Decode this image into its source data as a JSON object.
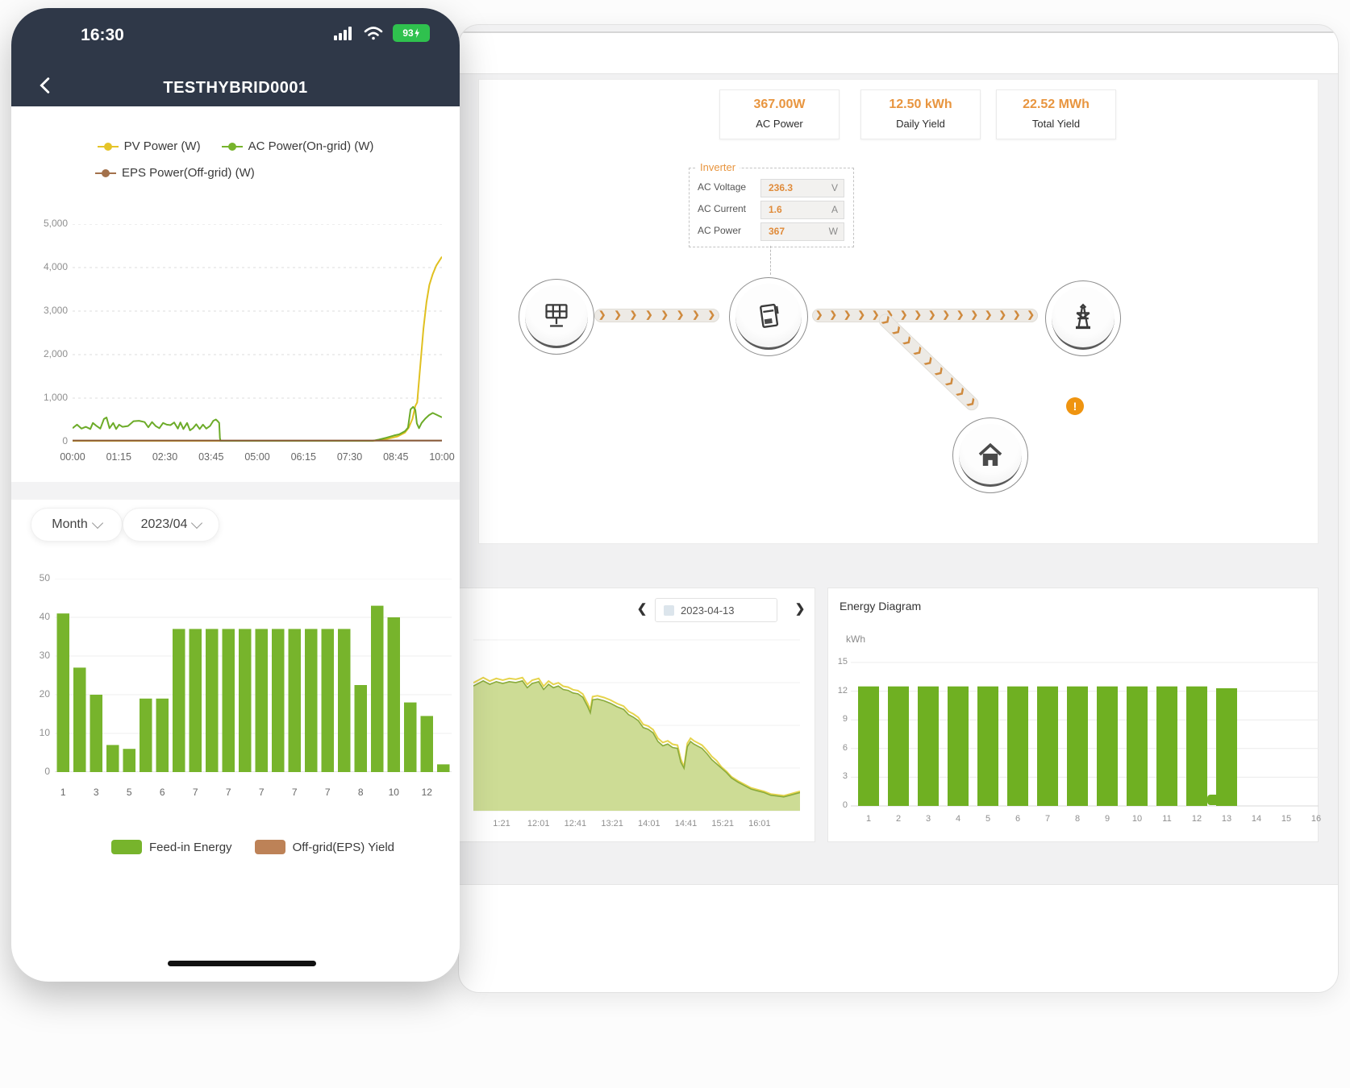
{
  "phone": {
    "status_bar": {
      "time": "16:30",
      "battery_level": "93"
    },
    "nav": {
      "title": "TESTHYBRID0001"
    },
    "power_chart": {
      "type": "line",
      "legend": [
        {
          "label": "PV Power (W)",
          "color": "#e5c428"
        },
        {
          "label": "AC Power(On-grid) (W)",
          "color": "#77b42c"
        },
        {
          "label": "EPS Power(Off-grid) (W)",
          "color": "#a3714b"
        }
      ],
      "y_ticks": [
        "5,000",
        "4,000",
        "3,000",
        "2,000",
        "1,000",
        "0"
      ],
      "ylim": [
        0,
        5000
      ],
      "x_ticks": [
        "00:00",
        "01:15",
        "02:30",
        "03:45",
        "05:00",
        "06:15",
        "07:30",
        "08:45",
        "10:00"
      ],
      "series": [
        {
          "name": "PV Power (W)",
          "color": "#e0c020",
          "points": [
            [
              0,
              0
            ],
            [
              0.79,
              0
            ],
            [
              0.82,
              25
            ],
            [
              0.85,
              60
            ],
            [
              0.88,
              120
            ],
            [
              0.9,
              210
            ],
            [
              0.91,
              320
            ],
            [
              0.92,
              520
            ],
            [
              0.928,
              820
            ],
            [
              0.933,
              900
            ],
            [
              0.94,
              1600
            ],
            [
              0.95,
              2600
            ],
            [
              0.958,
              3200
            ],
            [
              0.966,
              3600
            ],
            [
              0.975,
              3850
            ],
            [
              0.985,
              4050
            ],
            [
              1,
              4250
            ]
          ]
        },
        {
          "name": "AC Power(On-grid) (W)",
          "color": "#6cab28",
          "points": [
            [
              0,
              310
            ],
            [
              0.012,
              390
            ],
            [
              0.024,
              300
            ],
            [
              0.036,
              340
            ],
            [
              0.048,
              290
            ],
            [
              0.055,
              430
            ],
            [
              0.065,
              360
            ],
            [
              0.075,
              300
            ],
            [
              0.085,
              520
            ],
            [
              0.092,
              555
            ],
            [
              0.1,
              310
            ],
            [
              0.11,
              430
            ],
            [
              0.118,
              290
            ],
            [
              0.126,
              390
            ],
            [
              0.135,
              340
            ],
            [
              0.15,
              360
            ],
            [
              0.165,
              470
            ],
            [
              0.18,
              480
            ],
            [
              0.195,
              450
            ],
            [
              0.205,
              330
            ],
            [
              0.215,
              450
            ],
            [
              0.225,
              360
            ],
            [
              0.235,
              310
            ],
            [
              0.245,
              430
            ],
            [
              0.255,
              390
            ],
            [
              0.265,
              380
            ],
            [
              0.275,
              440
            ],
            [
              0.285,
              300
            ],
            [
              0.292,
              440
            ],
            [
              0.3,
              290
            ],
            [
              0.31,
              430
            ],
            [
              0.318,
              260
            ],
            [
              0.326,
              310
            ],
            [
              0.335,
              400
            ],
            [
              0.344,
              290
            ],
            [
              0.353,
              390
            ],
            [
              0.362,
              300
            ],
            [
              0.372,
              360
            ],
            [
              0.381,
              480
            ],
            [
              0.388,
              510
            ],
            [
              0.393,
              470
            ],
            [
              0.397,
              430
            ],
            [
              0.399,
              80
            ],
            [
              0.401,
              0
            ],
            [
              0.79,
              0
            ],
            [
              0.81,
              15
            ],
            [
              0.83,
              50
            ],
            [
              0.85,
              90
            ],
            [
              0.87,
              140
            ],
            [
              0.885,
              170
            ],
            [
              0.9,
              240
            ],
            [
              0.908,
              320
            ],
            [
              0.915,
              740
            ],
            [
              0.922,
              800
            ],
            [
              0.928,
              730
            ],
            [
              0.932,
              420
            ],
            [
              0.938,
              310
            ],
            [
              0.945,
              430
            ],
            [
              0.955,
              530
            ],
            [
              0.965,
              610
            ],
            [
              0.975,
              660
            ],
            [
              0.985,
              620
            ],
            [
              1,
              560
            ]
          ]
        },
        {
          "name": "EPS Power(Off-grid) (W)",
          "color": "#8a5a38",
          "points": [
            [
              0,
              25
            ],
            [
              1,
              25
            ]
          ]
        }
      ]
    },
    "filters": {
      "period_label": "Month",
      "date_label": "2023/04"
    },
    "daily_energy_chart": {
      "type": "bar",
      "y_ticks": [
        50,
        40,
        30,
        20,
        10,
        0
      ],
      "ylim": [
        0,
        50
      ],
      "x_tick_labels": [
        "1",
        "3",
        "5",
        "6",
        "7",
        "7",
        "7",
        "7",
        "7",
        "8",
        "10",
        "12"
      ],
      "values": [
        41,
        27,
        20,
        7,
        6,
        19,
        19,
        37,
        37,
        37,
        37,
        37,
        37,
        37,
        37,
        37,
        37,
        37,
        22.5,
        43,
        40,
        18,
        14.5,
        2
      ],
      "bar_color": "#77b42c",
      "legend": [
        {
          "label": "Feed-in Energy",
          "color": "#77b42c"
        },
        {
          "label": "Off-grid(EPS) Yield",
          "color": "#bd8257"
        }
      ]
    }
  },
  "dashboard": {
    "stats": [
      {
        "value": "367.00W",
        "label": "AC Power"
      },
      {
        "value": "12.50 kWh",
        "label": "Daily Yield"
      },
      {
        "value": "22.52 MWh",
        "label": "Total Yield"
      }
    ],
    "inverter_panel": {
      "title": "Inverter",
      "rows": [
        {
          "label": "AC Voltage",
          "value": "236.3",
          "unit": "V"
        },
        {
          "label": "AC Current",
          "value": "1.6",
          "unit": "A"
        },
        {
          "label": "AC Power",
          "value": "367",
          "unit": "W"
        }
      ]
    },
    "flow": {
      "alert": "!"
    },
    "day_chart": {
      "type": "area",
      "date": "2023-04-13",
      "x_ticks": [
        "1:21",
        "12:01",
        "12:41",
        "13:21",
        "14:01",
        "14:41",
        "15:21",
        "16:01"
      ],
      "fill_color": "#cddc95",
      "line_color": "#8aab3c",
      "pv_line_color": "#e6d44d",
      "points": [
        [
          0,
          0.72
        ],
        [
          0.03,
          0.75
        ],
        [
          0.05,
          0.73
        ],
        [
          0.07,
          0.745
        ],
        [
          0.09,
          0.735
        ],
        [
          0.11,
          0.745
        ],
        [
          0.13,
          0.74
        ],
        [
          0.15,
          0.75
        ],
        [
          0.165,
          0.71
        ],
        [
          0.18,
          0.735
        ],
        [
          0.2,
          0.745
        ],
        [
          0.215,
          0.7
        ],
        [
          0.23,
          0.73
        ],
        [
          0.245,
          0.71
        ],
        [
          0.26,
          0.72
        ],
        [
          0.275,
          0.7
        ],
        [
          0.29,
          0.695
        ],
        [
          0.305,
          0.68
        ],
        [
          0.32,
          0.675
        ],
        [
          0.335,
          0.655
        ],
        [
          0.35,
          0.6
        ],
        [
          0.358,
          0.565
        ],
        [
          0.365,
          0.64
        ],
        [
          0.38,
          0.645
        ],
        [
          0.4,
          0.635
        ],
        [
          0.42,
          0.62
        ],
        [
          0.44,
          0.6
        ],
        [
          0.46,
          0.585
        ],
        [
          0.475,
          0.555
        ],
        [
          0.49,
          0.54
        ],
        [
          0.505,
          0.52
        ],
        [
          0.52,
          0.48
        ],
        [
          0.535,
          0.47
        ],
        [
          0.55,
          0.45
        ],
        [
          0.565,
          0.4
        ],
        [
          0.58,
          0.375
        ],
        [
          0.595,
          0.385
        ],
        [
          0.61,
          0.365
        ],
        [
          0.625,
          0.36
        ],
        [
          0.635,
          0.28
        ],
        [
          0.645,
          0.245
        ],
        [
          0.655,
          0.37
        ],
        [
          0.665,
          0.4
        ],
        [
          0.675,
          0.385
        ],
        [
          0.69,
          0.37
        ],
        [
          0.7,
          0.36
        ],
        [
          0.715,
          0.33
        ],
        [
          0.73,
          0.295
        ],
        [
          0.745,
          0.27
        ],
        [
          0.76,
          0.245
        ],
        [
          0.775,
          0.22
        ],
        [
          0.79,
          0.19
        ],
        [
          0.81,
          0.165
        ],
        [
          0.83,
          0.145
        ],
        [
          0.85,
          0.125
        ],
        [
          0.87,
          0.115
        ],
        [
          0.89,
          0.105
        ],
        [
          0.91,
          0.09
        ],
        [
          0.93,
          0.085
        ],
        [
          0.95,
          0.08
        ],
        [
          0.97,
          0.09
        ],
        [
          1,
          0.105
        ]
      ]
    },
    "energy_diagram": {
      "title": "Energy Diagram",
      "unit": "kWh",
      "type": "bar",
      "y_ticks": [
        15,
        12,
        9,
        6,
        3,
        0
      ],
      "ylim": [
        0,
        15
      ],
      "categories": [
        "1",
        "2",
        "3",
        "4",
        "5",
        "6",
        "7",
        "8",
        "9",
        "10",
        "11",
        "12",
        "13",
        "14",
        "15",
        "16"
      ],
      "values": [
        12.5,
        12.5,
        12.5,
        12.5,
        12.5,
        12.5,
        12.5,
        12.5,
        12.5,
        12.5,
        12.5,
        12.5,
        12.3,
        0,
        0,
        0
      ],
      "bar_color": "#6fb022"
    }
  }
}
